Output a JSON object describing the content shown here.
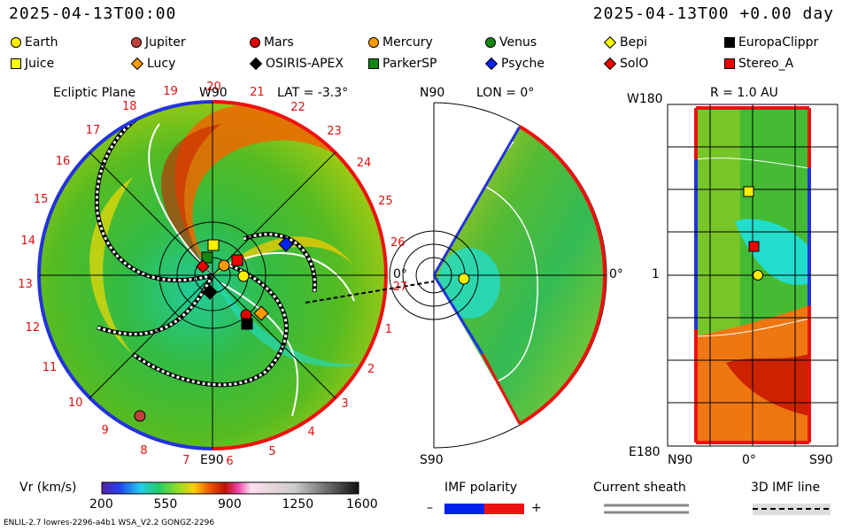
{
  "header": {
    "left_time": "2025-04-13T00:00",
    "right_time": "2025-04-13T00 +0.00 day"
  },
  "legend": [
    {
      "name": "Earth",
      "color": "#ffee00",
      "shape": "circle"
    },
    {
      "name": "Jupiter",
      "color": "#c04040",
      "shape": "circle"
    },
    {
      "name": "Mars",
      "color": "#e00000",
      "shape": "circle"
    },
    {
      "name": "Mercury",
      "color": "#ff9900",
      "shape": "circle"
    },
    {
      "name": "Venus",
      "color": "#118811",
      "shape": "circle"
    },
    {
      "name": "Bepi",
      "color": "#ffff00",
      "shape": "diamond"
    },
    {
      "name": "EuropaClippr",
      "color": "#000000",
      "shape": "square"
    },
    {
      "name": "Juice",
      "color": "#ffff00",
      "shape": "square"
    },
    {
      "name": "Lucy",
      "color": "#ff9900",
      "shape": "diamond"
    },
    {
      "name": "OSIRIS-APEX",
      "color": "#000000",
      "shape": "diamond"
    },
    {
      "name": "ParkerSP",
      "color": "#118811",
      "shape": "square"
    },
    {
      "name": "Psyche",
      "color": "#0022ee",
      "shape": "diamond"
    },
    {
      "name": "SolO",
      "color": "#ee0000",
      "shape": "diamond"
    },
    {
      "name": "Stereo_A",
      "color": "#ee0000",
      "shape": "square"
    }
  ],
  "panels": {
    "ecliptic": {
      "title": "Ecliptic Plane",
      "top_label": "W90",
      "lat_label": "LAT = -3.3°",
      "bottom_label": "E90",
      "right_label": "0°",
      "rotation_numbers": [
        "19",
        "20",
        "21",
        "22",
        "23",
        "24",
        "25",
        "26",
        "27",
        "1",
        "2",
        "3",
        "4",
        "5",
        "6",
        "7",
        "8",
        "9",
        "10",
        "11",
        "12",
        "13",
        "14",
        "15",
        "16",
        "17",
        "18"
      ]
    },
    "meridional": {
      "top_label": "N90",
      "lon_label": "LON = 0°",
      "bottom_label": "S90",
      "right_label": "0°"
    },
    "radial": {
      "top_left": "W180",
      "r_label": "R = 1.0 AU",
      "mid_label": "1",
      "bottom_left": "E180",
      "bottom_n": "N90",
      "bottom_mid": "0°",
      "bottom_s": "S90"
    }
  },
  "colorbar": {
    "title": "Vr (km/s)",
    "ticks": [
      "200",
      "550",
      "900",
      "1250",
      "1600"
    ]
  },
  "imf": {
    "title": "IMF polarity",
    "minus": "–",
    "plus": "+"
  },
  "sheath": {
    "title": "Current sheath"
  },
  "line3d": {
    "title": "3D IMF line"
  },
  "footer": {
    "left": "ENLIL-2.7 lowres-2296-a4b1 WSA_V2.2 GONGZ-2296"
  }
}
